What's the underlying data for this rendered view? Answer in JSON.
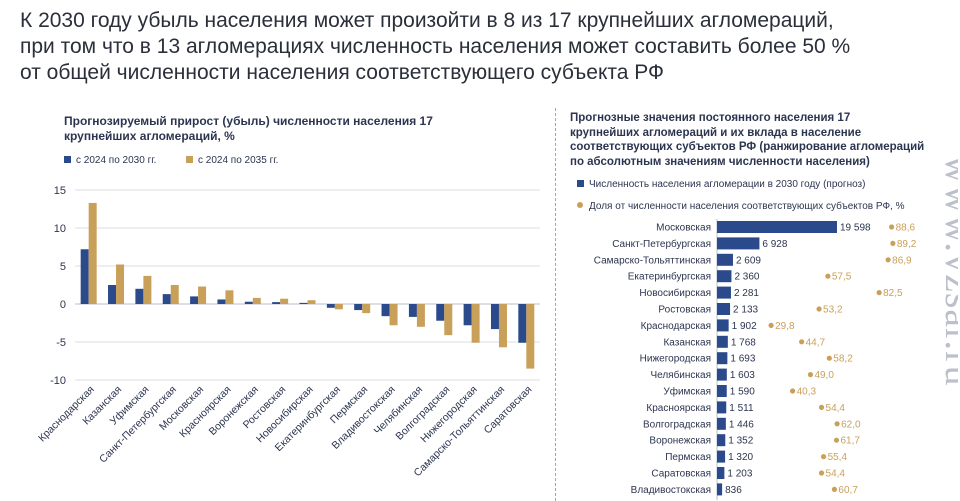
{
  "headline": {
    "line1": "К 2030 году убыль населения может произойти в 8 из 17 крупнейших агломераций,",
    "line2": "при том что в 13 агломерациях численность населения может составить более 50 %",
    "line3": "от общей численности населения соответствующего субъекта РФ"
  },
  "watermark": "www.vzsar.ru",
  "colors": {
    "blue": "#2a4a8b",
    "gold": "#c9a05a",
    "grid": "#d9dde5",
    "text": "#2c3550"
  },
  "chart_data": [
    {
      "type": "bar",
      "title_line1": "Прогнозируемый прирост (убыль) численности населения 17",
      "title_line2": "крупнейших агломераций, %",
      "ylim": [
        -10,
        15
      ],
      "yticks": [
        "15",
        "10",
        "5",
        "0",
        "-5",
        "-10"
      ],
      "categories": [
        "Краснодарская",
        "Казанская",
        "Уфимская",
        "Санкт-Петербургская",
        "Московская",
        "Красноярская",
        "Воронежская",
        "Ростовская",
        "Новосибирская",
        "Екатеринбургская",
        "Пермская",
        "Владивостокская",
        "Челябинская",
        "Волгоградская",
        "Нижегородская",
        "Самарско-Тольяттинская",
        "Саратовская"
      ],
      "series": [
        {
          "name": "с 2024 по 2030 гг.",
          "values": [
            7.2,
            2.5,
            2.0,
            1.3,
            1.0,
            0.6,
            0.3,
            0.25,
            0.15,
            -0.5,
            -0.8,
            -1.6,
            -1.7,
            -2.2,
            -2.8,
            -3.3,
            -5.1
          ]
        },
        {
          "name": "с 2024 по 2035 гг.",
          "values": [
            13.3,
            5.2,
            3.7,
            2.5,
            2.3,
            1.8,
            0.8,
            0.7,
            0.5,
            -0.7,
            -1.2,
            -2.8,
            -3.0,
            -4.1,
            -5.1,
            -5.7,
            -8.5
          ]
        }
      ]
    },
    {
      "type": "bar",
      "orientation": "horizontal",
      "title_line1": "Прогнозные значения постоянного населения 17",
      "title_line2": "крупнейших агломераций и их вклада в население",
      "title_line3": "соответствующих субъектов РФ (ранжирование агломераций",
      "title_line4": "по абсолютным значениям численности населения)",
      "categories": [
        "Московская",
        "Санкт-Петербургская",
        "Самарско-Тольяттинская",
        "Екатеринбургская",
        "Новосибирская",
        "Ростовская",
        "Краснодарская",
        "Казанская",
        "Нижегородская",
        "Челябинская",
        "Уфимская",
        "Красноярская",
        "Волгоградская",
        "Воронежская",
        "Пермская",
        "Саратовская",
        "Владивостокская"
      ],
      "series": [
        {
          "name": "Численность населения агломерации в 2030 году (прогноз)",
          "values": [
            19598,
            6928,
            2609,
            2360,
            2281,
            2133,
            1902,
            1768,
            1693,
            1603,
            1590,
            1511,
            1446,
            1352,
            1320,
            1203,
            836
          ],
          "labels": [
            "19 598",
            "6 928",
            "2 609",
            "2 360",
            "2 281",
            "2 133",
            "1 902",
            "1 768",
            "1 693",
            "1 603",
            "1 590",
            "1 511",
            "1 446",
            "1 352",
            "1 320",
            "1 203",
            "836"
          ]
        },
        {
          "name": "Доля от численности населения соответствующих субъектов РФ, %",
          "values": [
            88.6,
            89.2,
            86.9,
            57.5,
            82.5,
            53.2,
            29.8,
            44.7,
            58.2,
            49.0,
            40.3,
            54.4,
            62.0,
            61.7,
            55.4,
            54.4,
            60.7
          ],
          "labels": [
            "88,6",
            "89,2",
            "86,9",
            "57,5",
            "82,5",
            "53,2",
            "29,8",
            "44,7",
            "58,2",
            "49,0",
            "40,3",
            "54,4",
            "62,0",
            "61,7",
            "55,4",
            "54,4",
            "60,7"
          ]
        }
      ]
    }
  ]
}
